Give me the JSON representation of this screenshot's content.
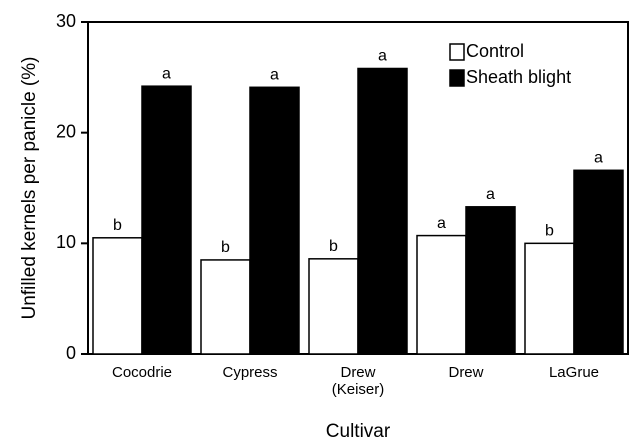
{
  "chart_data": {
    "type": "bar",
    "y_label": "Unfilled kernels per panicle (%)",
    "x_label": "Cultivar",
    "categories": [
      "Cocodrie",
      "Cypress",
      "Drew\n(Keiser)",
      "Drew",
      "LaGrue"
    ],
    "series": [
      {
        "name": "Control",
        "color": "#ffffff",
        "values": [
          10.5,
          8.5,
          8.6,
          10.7,
          10.0
        ],
        "annotations": [
          "b",
          "b",
          "b",
          "a",
          "b"
        ]
      },
      {
        "name": "Sheath blight",
        "color": "#000000",
        "values": [
          24.2,
          24.1,
          25.8,
          13.3,
          16.6
        ],
        "annotations": [
          "a",
          "a",
          "a",
          "a",
          "a"
        ]
      }
    ],
    "ylim": [
      0,
      30
    ],
    "yticks": [
      0,
      10,
      20,
      30
    ],
    "grid": false,
    "legend": "upper right"
  }
}
